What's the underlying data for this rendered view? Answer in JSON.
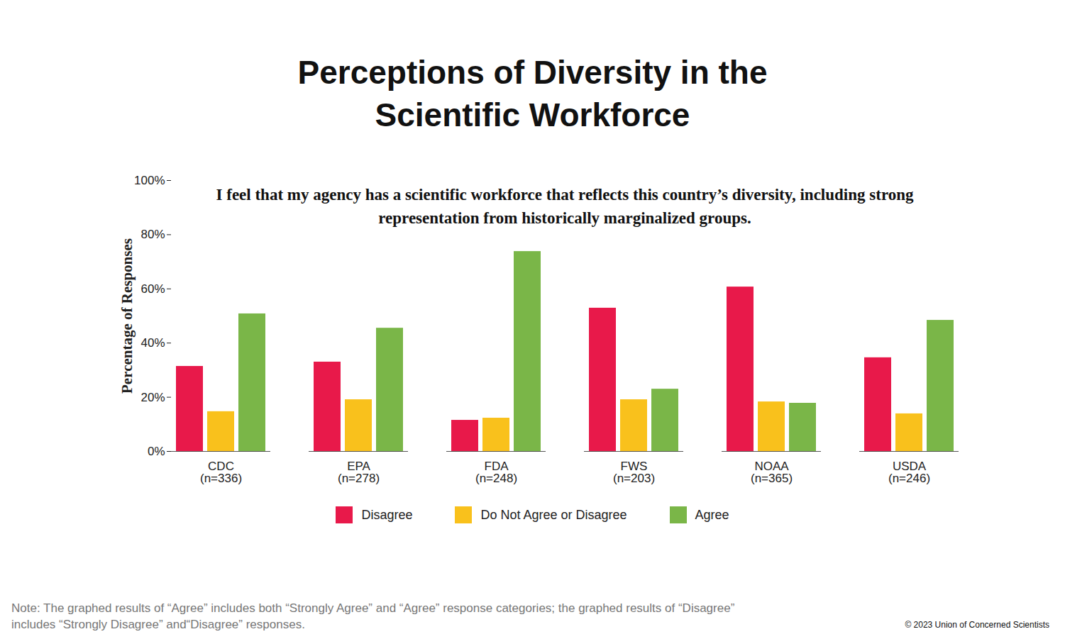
{
  "chart_data": {
    "type": "bar",
    "title": "Perceptions of Diversity in the Scientific Workforce",
    "subtitle": "I feel that my agency has a scientific workforce that reflects this country’s diversity, including strong representation from historically marginalized groups.",
    "ylabel": "Percentage of Responses",
    "categories": [
      "CDC\n(n=336)",
      "EPA\n(n=278)",
      "FDA\n(n=248)",
      "FWS\n(n=203)",
      "NOAA\n(n=365)",
      "USDA\n(n=246)"
    ],
    "series": [
      {
        "name": "Disagree",
        "color": "#e8194a",
        "values": [
          31.4,
          33.0,
          11.5,
          52.9,
          60.7,
          34.6
        ]
      },
      {
        "name": "Do Not Agree or Disagree",
        "color": "#f9c11c",
        "values": [
          14.7,
          19.1,
          12.3,
          19.1,
          18.3,
          13.9
        ]
      },
      {
        "name": "Agree",
        "color": "#7ab648",
        "values": [
          50.8,
          45.5,
          73.8,
          23.0,
          17.8,
          48.4
        ]
      }
    ],
    "ylim": [
      0,
      100
    ],
    "yticks": [
      {
        "value": 0,
        "label": "0%"
      },
      {
        "value": 20,
        "label": "20%"
      },
      {
        "value": 40,
        "label": "40%"
      },
      {
        "value": 60,
        "label": "60%"
      },
      {
        "value": 80,
        "label": "80%"
      },
      {
        "value": 100,
        "label": "100%"
      }
    ],
    "grid": false,
    "legend": "bottom",
    "caption": "Note: The graphed results of “Agree” includes both “Strongly Agree” and “Agree” response categories; the graphed results of “Disagree” includes “Strongly Disagree” and“Disagree” responses.",
    "credit": "© 2023 Union of Concerned Scientists"
  }
}
